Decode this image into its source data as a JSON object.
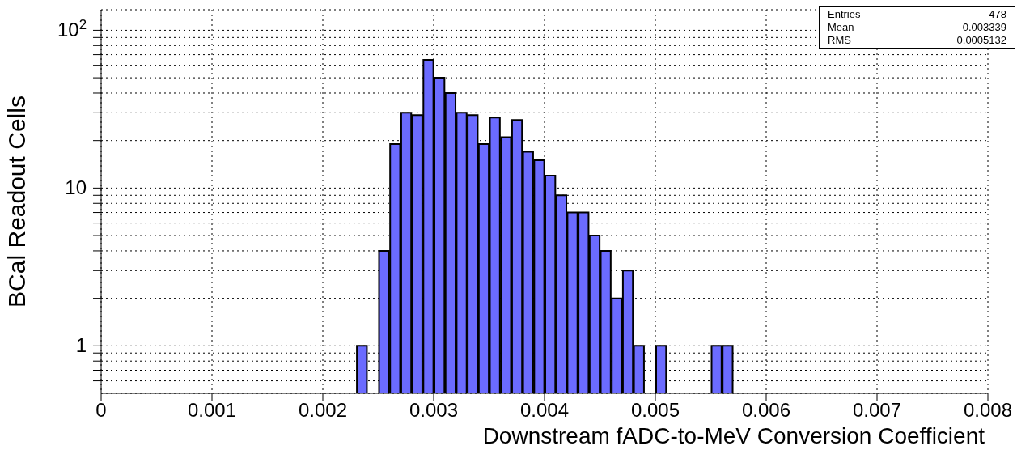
{
  "chart_data": {
    "type": "histogram",
    "xlabel": "Downstream fADC-to-MeV Conversion Coefficient",
    "ylabel": "BCal Readout Cells",
    "bins": [
      0.0023,
      0.0024,
      0.0025,
      0.0026,
      0.0027,
      0.0028,
      0.0029,
      0.003,
      0.0031,
      0.0032,
      0.0033,
      0.0034,
      0.0035,
      0.0036,
      0.0037,
      0.0038,
      0.0039,
      0.004,
      0.0041,
      0.0042,
      0.0043,
      0.0044,
      0.0045,
      0.0046,
      0.0047,
      0.0048,
      0.0049,
      0.005,
      0.0051,
      0.0052,
      0.0053,
      0.0054,
      0.0055,
      0.0056,
      0.0057
    ],
    "values": [
      1,
      null,
      4,
      19,
      30,
      29,
      65,
      50,
      40,
      30,
      29,
      19,
      28,
      21,
      27,
      17,
      15,
      12,
      9,
      7,
      7,
      5,
      4,
      2,
      3,
      1,
      null,
      1,
      null,
      null,
      null,
      null,
      1,
      1
    ],
    "color": "#6b6bff",
    "log": "y",
    "grid": true,
    "xlim": [
      0,
      0.008
    ],
    "xticks": [
      0,
      0.001,
      0.002,
      0.003,
      0.004,
      0.005,
      0.006,
      0.007,
      0.008
    ],
    "ylim": [
      0.5,
      135
    ],
    "yticks": [
      {
        "value": 0.6,
        "label": null
      },
      {
        "value": 0.7,
        "label": null
      },
      {
        "value": 0.8,
        "label": null
      },
      {
        "value": 0.9,
        "label": null
      },
      1,
      {
        "value": 2,
        "label": null
      },
      {
        "value": 3,
        "label": null
      },
      {
        "value": 4,
        "label": null
      },
      {
        "value": 5,
        "label": null
      },
      {
        "value": 6,
        "label": null
      },
      {
        "value": 7,
        "label": null
      },
      {
        "value": 8,
        "label": null
      },
      {
        "value": 9,
        "label": null
      },
      10,
      {
        "value": 20,
        "label": null
      },
      {
        "value": 30,
        "label": null
      },
      {
        "value": 40,
        "label": null
      },
      {
        "value": 50,
        "label": null
      },
      {
        "value": 60,
        "label": null
      },
      {
        "value": 70,
        "label": null
      },
      {
        "value": 80,
        "label": null
      },
      {
        "value": 90,
        "label": null
      },
      {
        "value": 100,
        "label": "10$^{2}$"
      }
    ],
    "annotations": [
      "Entries",
      "478",
      "Mean",
      "0.003339",
      "RMS",
      "0.0005132"
    ]
  }
}
